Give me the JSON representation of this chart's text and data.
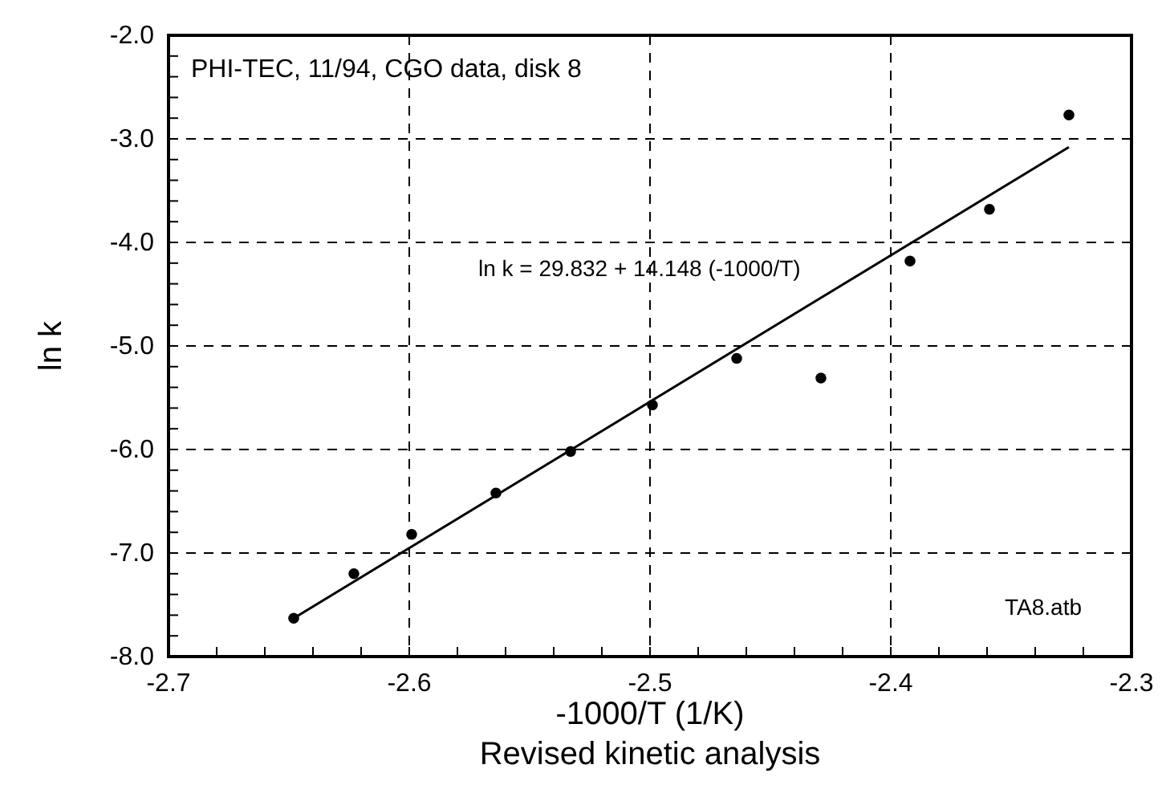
{
  "chart_data": {
    "type": "scatter",
    "xlabel": "-1000/T (1/K)",
    "ylabel": "ln k",
    "annotations": [
      "PHI-TEC, 11/94, CGO data, disk 8",
      "ln k = 29.832 + 14.148 (-1000/T)",
      "TA8.atb",
      "Revised kinetic analysis"
    ],
    "xlim": [
      -2.7,
      -2.3
    ],
    "ylim": [
      -8.0,
      -2.0
    ],
    "xticks": [
      {
        "value": -2.7,
        "label": "-2.7"
      },
      {
        "value": -2.68,
        "label": null
      },
      {
        "value": -2.66,
        "label": null
      },
      {
        "value": -2.64,
        "label": null
      },
      {
        "value": -2.62,
        "label": null
      },
      {
        "value": -2.6,
        "label": "-2.6"
      },
      {
        "value": -2.58,
        "label": null
      },
      {
        "value": -2.56,
        "label": null
      },
      {
        "value": -2.54,
        "label": null
      },
      {
        "value": -2.52,
        "label": null
      },
      {
        "value": -2.5,
        "label": "-2.5"
      },
      {
        "value": -2.48,
        "label": null
      },
      {
        "value": -2.46,
        "label": null
      },
      {
        "value": -2.44,
        "label": null
      },
      {
        "value": -2.42,
        "label": null
      },
      {
        "value": -2.4,
        "label": "-2.4"
      },
      {
        "value": -2.38,
        "label": null
      },
      {
        "value": -2.36,
        "label": null
      },
      {
        "value": -2.34,
        "label": null
      },
      {
        "value": -2.32,
        "label": null
      },
      {
        "value": -2.3,
        "label": "-2.3"
      }
    ],
    "yticks": [
      {
        "value": -8.0,
        "label": "-8.0"
      },
      {
        "value": -7.8,
        "label": null
      },
      {
        "value": -7.6,
        "label": null
      },
      {
        "value": -7.4,
        "label": null
      },
      {
        "value": -7.2,
        "label": null
      },
      {
        "value": -7.0,
        "label": "-7.0"
      },
      {
        "value": -6.8,
        "label": null
      },
      {
        "value": -6.6,
        "label": null
      },
      {
        "value": -6.4,
        "label": null
      },
      {
        "value": -6.2,
        "label": null
      },
      {
        "value": -6.0,
        "label": "-6.0"
      },
      {
        "value": -5.8,
        "label": null
      },
      {
        "value": -5.6,
        "label": null
      },
      {
        "value": -5.4,
        "label": null
      },
      {
        "value": -5.2,
        "label": null
      },
      {
        "value": -5.0,
        "label": "-5.0"
      },
      {
        "value": -4.8,
        "label": null
      },
      {
        "value": -4.6,
        "label": null
      },
      {
        "value": -4.4,
        "label": null
      },
      {
        "value": -4.2,
        "label": null
      },
      {
        "value": -4.0,
        "label": "-4.0"
      },
      {
        "value": -3.8,
        "label": null
      },
      {
        "value": -3.6,
        "label": null
      },
      {
        "value": -3.4,
        "label": null
      },
      {
        "value": -3.2,
        "label": null
      },
      {
        "value": -3.0,
        "label": "-3.0"
      },
      {
        "value": -2.8,
        "label": null
      },
      {
        "value": -2.6,
        "label": null
      },
      {
        "value": -2.4,
        "label": null
      },
      {
        "value": -2.2,
        "label": null
      },
      {
        "value": -2.0,
        "label": "-2.0"
      }
    ],
    "grid": true,
    "series": [
      {
        "marker": "circle",
        "color": "#000000",
        "x": [
          -2.648,
          -2.623,
          -2.599,
          -2.564,
          -2.533,
          -2.499,
          -2.464,
          -2.429,
          -2.392,
          -2.359,
          -2.326
        ],
        "values": [
          -7.63,
          -7.2,
          -6.82,
          -6.42,
          -6.02,
          -5.57,
          -5.12,
          -5.31,
          -4.18,
          -3.68,
          -2.77
        ]
      },
      {
        "type": "line",
        "marker": "none",
        "color": "#000000",
        "line_style": "solid",
        "x": [
          -2.648,
          -2.326
        ],
        "values": [
          -7.63,
          -3.08
        ]
      }
    ]
  }
}
